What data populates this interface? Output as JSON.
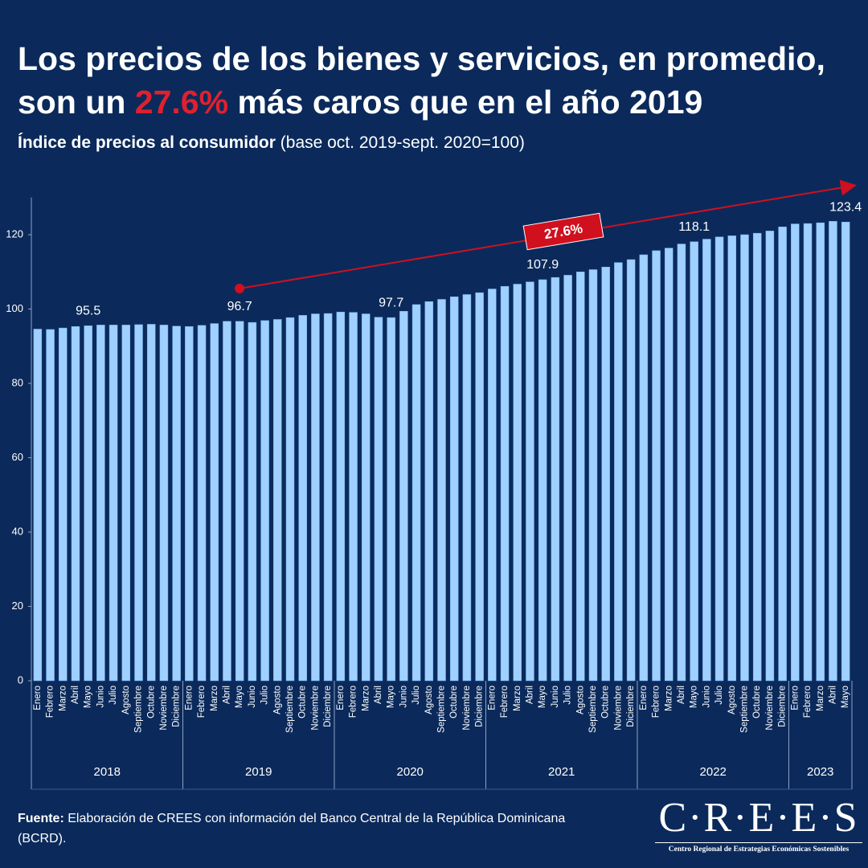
{
  "header": {
    "title_line1": "Los precios de los bienes y servicios, en promedio,",
    "title_pre": "son un",
    "title_highlight": "27.6%",
    "title_post": "más caros que en el año 2019",
    "subtitle_bold": "Índice de precios al consumidor",
    "subtitle_rest": "(base oct. 2019-sept. 2020=100)"
  },
  "chart_data": {
    "type": "bar",
    "color": "#9fd0ff",
    "categories": [
      "Enero",
      "Febrero",
      "Marzo",
      "Abril",
      "Mayo",
      "Junio",
      "Julio",
      "Agosto",
      "Septiembre",
      "Octubre",
      "Noviembre",
      "Diciembre",
      "Enero",
      "Febrero",
      "Marzo",
      "Abril",
      "Mayo",
      "Junio",
      "Julio",
      "Agosto",
      "Septiembre",
      "Octubre",
      "Noviembre",
      "Diciembre",
      "Enero",
      "Febrero",
      "Marzo",
      "Abril",
      "Mayo",
      "Junio",
      "Julio",
      "Agosto",
      "Septiembre",
      "Octubre",
      "Noviembre",
      "Diciembre",
      "Enero",
      "Febrero",
      "Marzo",
      "Abril",
      "Mayo",
      "Junio",
      "Julio",
      "Agosto",
      "Septiembre",
      "Octubre",
      "Noviembre",
      "Diciembre",
      "Enero",
      "Febrero",
      "Marzo",
      "Abril",
      "Mayo",
      "Junio",
      "Julio",
      "Agosto",
      "Septiembre",
      "Octubre",
      "Noviembre",
      "Diciembre",
      "Enero",
      "Febrero",
      "Marzo",
      "Abril",
      "Mayo"
    ],
    "values": [
      94.6,
      94.5,
      94.9,
      95.3,
      95.5,
      95.7,
      95.7,
      95.7,
      95.8,
      95.9,
      95.7,
      95.4,
      95.3,
      95.6,
      96.1,
      96.7,
      96.7,
      96.4,
      96.9,
      97.2,
      97.7,
      98.3,
      98.7,
      98.8,
      99.2,
      99.1,
      98.7,
      97.8,
      97.7,
      99.4,
      101.2,
      102.0,
      102.6,
      103.3,
      103.9,
      104.4,
      105.4,
      106.1,
      106.7,
      107.3,
      107.9,
      108.5,
      109.1,
      110.0,
      110.6,
      111.3,
      112.5,
      113.3,
      114.6,
      115.7,
      116.4,
      117.5,
      118.1,
      118.8,
      119.4,
      119.7,
      120.0,
      120.4,
      121.0,
      122.1,
      122.9,
      123.0,
      123.2,
      123.6,
      123.4
    ],
    "value_labels": [
      null,
      null,
      null,
      null,
      "95.5",
      null,
      null,
      null,
      null,
      null,
      null,
      null,
      null,
      null,
      null,
      null,
      "96.7",
      null,
      null,
      null,
      null,
      null,
      null,
      null,
      null,
      null,
      null,
      null,
      "97.7",
      null,
      null,
      null,
      null,
      null,
      null,
      null,
      null,
      null,
      null,
      null,
      "107.9",
      null,
      null,
      null,
      null,
      null,
      null,
      null,
      null,
      null,
      null,
      null,
      "118.1",
      null,
      null,
      null,
      null,
      null,
      null,
      null,
      null,
      null,
      null,
      null,
      "123.4"
    ],
    "groups": [
      {
        "name": "2018",
        "span": 12
      },
      {
        "name": "2019",
        "span": 12
      },
      {
        "name": "2020",
        "span": 12
      },
      {
        "name": "2021",
        "span": 12
      },
      {
        "name": "2022",
        "span": 12
      },
      {
        "name": "2023",
        "span": 5
      }
    ],
    "ylim": [
      0,
      130
    ],
    "yticks": [
      0,
      20,
      40,
      60,
      80,
      100,
      120
    ],
    "annotation": "27.6%",
    "annotation_color": "#d0101e"
  },
  "footer": {
    "source_bold": "Fuente:",
    "source_rest": "Elaboración de CREES con información del Banco Central de la República Dominicana (BCRD).",
    "logo": "C·R·E·E·S",
    "logo_sub": "Centro Regional de Estrategias Económicas Sostenibles"
  }
}
